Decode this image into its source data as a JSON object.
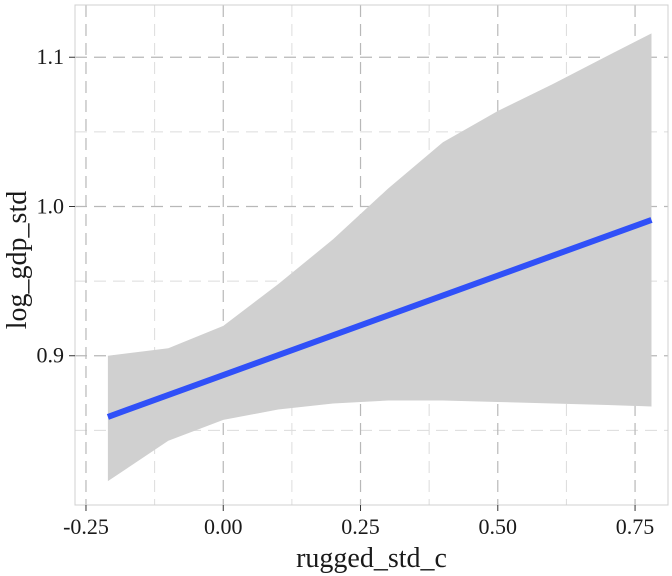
{
  "chart_data": {
    "type": "line",
    "title": "",
    "xlabel": "rugged_std_c",
    "ylabel": "log_gdp_std",
    "xlim": [
      -0.27,
      0.81
    ],
    "ylim": [
      0.8,
      1.135
    ],
    "x_ticks": [
      {
        "value": -0.25,
        "label": "-0.25"
      },
      {
        "value": 0.0,
        "label": "0.00"
      },
      {
        "value": 0.25,
        "label": "0.25"
      },
      {
        "value": 0.5,
        "label": "0.50"
      },
      {
        "value": 0.75,
        "label": "0.75"
      }
    ],
    "y_ticks": [
      {
        "value": 0.9,
        "label": "0.9"
      },
      {
        "value": 1.0,
        "label": "1.0"
      },
      {
        "value": 1.1,
        "label": "1.1"
      }
    ],
    "x_minor_grid": [
      -0.125,
      0.125,
      0.375,
      0.625
    ],
    "y_minor_grid": [
      0.85,
      0.95,
      1.05
    ],
    "grid": true,
    "series": [
      {
        "x": [
          -0.21,
          0.78
        ],
        "y": [
          0.859,
          0.991
        ],
        "color": "#3050f8",
        "band": {
          "color": "#d0d0d0",
          "x": [
            -0.21,
            -0.1,
            0.0,
            0.1,
            0.2,
            0.3,
            0.4,
            0.5,
            0.6,
            0.7,
            0.78
          ],
          "upper": [
            0.9,
            0.905,
            0.92,
            0.948,
            0.978,
            1.012,
            1.043,
            1.064,
            1.082,
            1.101,
            1.116
          ],
          "lower": [
            0.816,
            0.843,
            0.857,
            0.864,
            0.868,
            0.87,
            0.87,
            0.869,
            0.868,
            0.867,
            0.866
          ]
        }
      }
    ]
  }
}
